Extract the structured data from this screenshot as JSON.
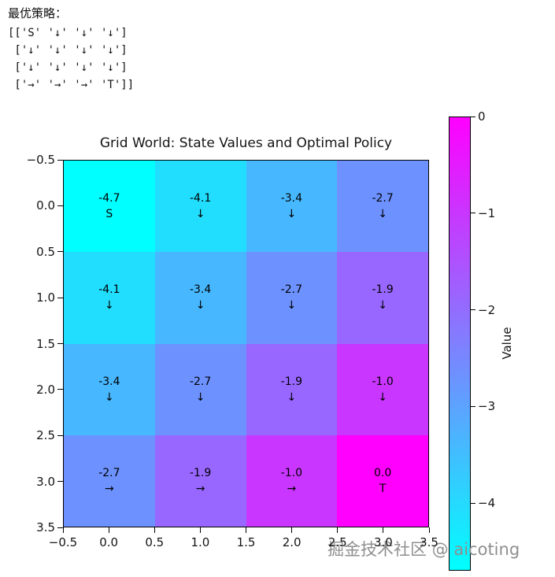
{
  "header": {
    "policy_label": "最优策略：",
    "policy_lines": [
      "[['S' '↓' '↓' '↓']",
      " ['↓' '↓' '↓' '↓']",
      " ['↓' '↓' '↓' '↓']",
      " ['→' '→' '→' 'T']]"
    ]
  },
  "chart_data": {
    "type": "heatmap",
    "title": "Grid World: State Values and Optimal Policy",
    "rows": 4,
    "cols": 4,
    "origin": "upper",
    "values": [
      [
        -4.7,
        -4.1,
        -3.4,
        -2.7
      ],
      [
        -4.1,
        -3.4,
        -2.7,
        -1.9
      ],
      [
        -3.4,
        -2.7,
        -1.9,
        -1.0
      ],
      [
        -2.7,
        -1.9,
        -1.0,
        0.0
      ]
    ],
    "value_labels": [
      [
        "-4.7",
        "-4.1",
        "-3.4",
        "-2.7"
      ],
      [
        "-4.1",
        "-3.4",
        "-2.7",
        "-1.9"
      ],
      [
        "-3.4",
        "-2.7",
        "-1.9",
        "-1.0"
      ],
      [
        "-2.7",
        "-1.9",
        "-1.0",
        "0.0"
      ]
    ],
    "policy_labels": [
      [
        "S",
        "↓",
        "↓",
        "↓"
      ],
      [
        "↓",
        "↓",
        "↓",
        "↓"
      ],
      [
        "↓",
        "↓",
        "↓",
        "↓"
      ],
      [
        "→",
        "→",
        "→",
        "T"
      ]
    ],
    "x_ticks": [
      "−0.5",
      "0.0",
      "0.5",
      "1.0",
      "1.5",
      "2.0",
      "2.5",
      "3.0",
      "3.5"
    ],
    "y_ticks": [
      "−0.5",
      "0.0",
      "0.5",
      "1.0",
      "1.5",
      "2.0",
      "2.5",
      "3.0",
      "3.5"
    ],
    "x_range": [
      -0.5,
      3.5
    ],
    "y_range": [
      -0.5,
      3.5
    ],
    "vmin": -4.7,
    "vmax": 0,
    "colormap": {
      "name": "cool",
      "low_color": "#00FFFF",
      "high_color": "#FF00FF"
    },
    "colorbar": {
      "label": "Value",
      "ticks": [
        0,
        -1,
        -2,
        -3,
        -4
      ],
      "tick_labels": [
        "0",
        "−1",
        "−2",
        "−3",
        "−4"
      ]
    }
  },
  "watermark": "掘金技术社区 @ aicoting"
}
